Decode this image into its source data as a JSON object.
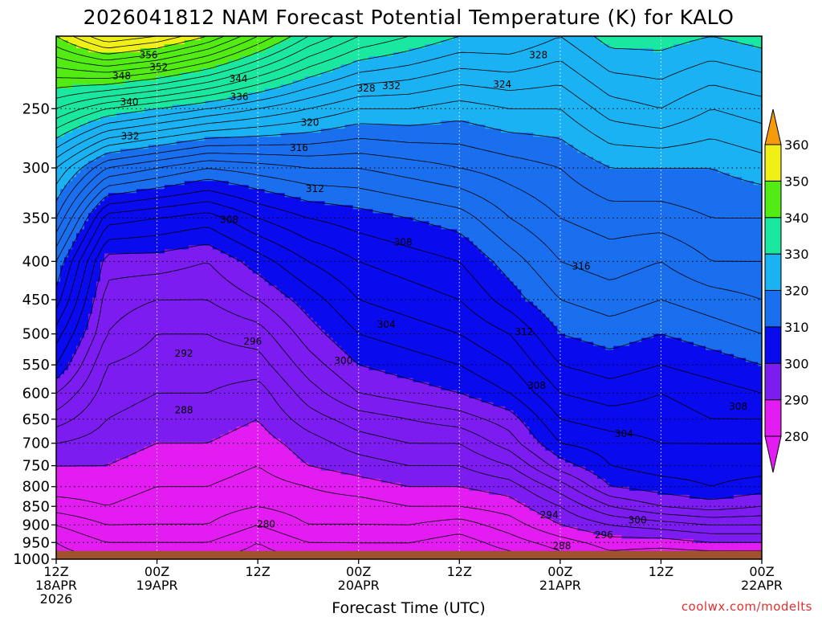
{
  "chart_data": {
    "type": "heatmap",
    "title": "2026041812 NAM Forecast Potential Temperature (K) for KALO",
    "xlabel": "Forecast Time (UTC)",
    "ylabel": "",
    "y_scale": "log",
    "y_reversed": true,
    "ylim": [
      1000,
      200
    ],
    "y_ticks": [
      "250",
      "300",
      "350",
      "400",
      "450",
      "500",
      "550",
      "600",
      "650",
      "700",
      "750",
      "800",
      "850",
      "900",
      "950",
      "1000"
    ],
    "xlim": [
      0,
      84
    ],
    "x_ticks": [
      {
        "hour": 0,
        "line1": "12Z",
        "line2": "18APR",
        "line3": "2026"
      },
      {
        "hour": 12,
        "line1": "00Z",
        "line2": "19APR",
        "line3": ""
      },
      {
        "hour": 24,
        "line1": "12Z",
        "line2": "",
        "line3": ""
      },
      {
        "hour": 36,
        "line1": "00Z",
        "line2": "20APR",
        "line3": ""
      },
      {
        "hour": 48,
        "line1": "12Z",
        "line2": "",
        "line3": ""
      },
      {
        "hour": 60,
        "line1": "00Z",
        "line2": "21APR",
        "line3": ""
      },
      {
        "hour": 72,
        "line1": "12Z",
        "line2": "",
        "line3": ""
      },
      {
        "hour": 84,
        "line1": "00Z",
        "line2": "22APR",
        "line3": ""
      }
    ],
    "grid": true,
    "surface_pressure": 975,
    "ground_color": "#a0522d",
    "colorbar": {
      "levels": [
        "280",
        "290",
        "300",
        "310",
        "320",
        "330",
        "340",
        "350",
        "360"
      ],
      "colors": [
        "#e31cf2",
        "#7c1cf0",
        "#0a0aef",
        "#1a6fee",
        "#1ab2f2",
        "#1ae8a0",
        "#52ec14",
        "#f0f018",
        "#f59b0b"
      ],
      "extend": "both"
    },
    "time_hours": [
      0,
      6,
      12,
      18,
      24,
      30,
      36,
      42,
      48,
      54,
      60,
      66,
      72,
      78,
      84
    ],
    "pressure_levels": [
      1000,
      950,
      900,
      850,
      800,
      750,
      700,
      650,
      600,
      550,
      500,
      450,
      400,
      350,
      300,
      250,
      200
    ],
    "theta_profiles": [
      [
        281,
        282,
        284,
        287,
        289,
        290,
        292,
        295,
        298,
        302,
        305,
        309,
        312,
        318,
        324,
        336,
        350
      ],
      [
        282,
        284,
        286,
        288,
        289,
        290,
        291,
        292,
        293,
        294,
        296,
        297,
        299,
        305,
        316,
        332,
        356
      ],
      [
        282,
        284,
        286,
        287,
        288,
        289,
        290,
        291,
        292,
        293,
        294,
        296,
        299,
        304,
        314,
        330,
        354
      ],
      [
        282,
        284,
        286,
        287,
        288,
        289,
        290,
        291,
        292,
        293,
        294,
        296,
        298,
        303,
        312,
        328,
        350
      ],
      [
        281,
        282,
        284,
        286,
        287,
        288,
        289,
        290,
        291,
        293,
        295,
        298,
        301,
        306,
        313,
        326,
        344
      ],
      [
        282,
        284,
        286,
        287,
        288,
        290,
        291,
        293,
        295,
        297,
        299,
        301,
        304,
        308,
        314,
        324,
        338
      ],
      [
        283,
        284,
        286,
        287,
        289,
        291,
        293,
        295,
        298,
        300,
        302,
        304,
        306,
        309,
        314,
        322,
        334
      ],
      [
        283,
        284,
        286,
        288,
        290,
        292,
        294,
        296,
        299,
        301,
        303,
        305,
        307,
        310,
        315,
        322,
        332
      ],
      [
        282,
        283,
        285,
        288,
        290,
        292,
        294,
        297,
        300,
        302,
        304,
        306,
        308,
        311,
        316,
        321,
        330
      ],
      [
        283,
        285,
        287,
        289,
        291,
        294,
        297,
        299,
        302,
        304,
        306,
        309,
        311,
        314,
        317,
        322,
        330
      ],
      [
        285,
        287,
        290,
        292,
        295,
        299,
        302,
        304,
        306,
        308,
        310,
        312,
        314,
        316,
        318,
        322,
        328
      ],
      [
        287,
        289,
        292,
        296,
        300,
        302,
        303,
        305,
        307,
        309,
        311,
        313,
        315,
        317,
        320,
        325,
        331
      ],
      [
        286,
        289,
        293,
        298,
        301,
        303,
        304,
        305,
        306,
        308,
        310,
        312,
        314,
        317,
        320,
        326,
        331
      ],
      [
        286,
        290,
        294,
        299,
        302,
        303,
        304,
        306,
        307,
        309,
        311,
        313,
        316,
        318,
        320,
        324,
        330
      ],
      [
        286,
        290,
        294,
        298,
        301,
        303,
        304,
        306,
        308,
        310,
        312,
        314,
        316,
        318,
        321,
        325,
        331
      ]
    ],
    "contour_labels": [
      {
        "text": "356",
        "hour": 11,
        "p": 212
      },
      {
        "text": "352",
        "hour": 12.2,
        "p": 220
      },
      {
        "text": "348",
        "hour": 7.8,
        "p": 226
      },
      {
        "text": "344",
        "hour": 21.7,
        "p": 228
      },
      {
        "text": "340",
        "hour": 8.7,
        "p": 245
      },
      {
        "text": "336",
        "hour": 21.8,
        "p": 241
      },
      {
        "text": "332",
        "hour": 8.8,
        "p": 272
      },
      {
        "text": "332",
        "hour": 39.9,
        "p": 233
      },
      {
        "text": "328",
        "hour": 36.9,
        "p": 235
      },
      {
        "text": "328",
        "hour": 57.4,
        "p": 212
      },
      {
        "text": "324",
        "hour": 53.1,
        "p": 232
      },
      {
        "text": "320",
        "hour": 30.2,
        "p": 261
      },
      {
        "text": "316",
        "hour": 28.9,
        "p": 282
      },
      {
        "text": "316",
        "hour": 62.5,
        "p": 406
      },
      {
        "text": "312",
        "hour": 30.8,
        "p": 320
      },
      {
        "text": "312",
        "hour": 55.7,
        "p": 497
      },
      {
        "text": "308",
        "hour": 20.6,
        "p": 352
      },
      {
        "text": "308",
        "hour": 41.3,
        "p": 377
      },
      {
        "text": "308",
        "hour": 57.2,
        "p": 586
      },
      {
        "text": "308",
        "hour": 81.2,
        "p": 625
      },
      {
        "text": "304",
        "hour": 39.3,
        "p": 486
      },
      {
        "text": "304",
        "hour": 67.6,
        "p": 680
      },
      {
        "text": "300",
        "hour": 34.2,
        "p": 543
      },
      {
        "text": "300",
        "hour": 69.2,
        "p": 887
      },
      {
        "text": "296",
        "hour": 23.4,
        "p": 512
      },
      {
        "text": "296",
        "hour": 65.2,
        "p": 928
      },
      {
        "text": "294",
        "hour": 58.7,
        "p": 873
      },
      {
        "text": "292",
        "hour": 15.2,
        "p": 531
      },
      {
        "text": "288",
        "hour": 15.2,
        "p": 632
      },
      {
        "text": "288",
        "hour": 60.2,
        "p": 960
      },
      {
        "text": "280",
        "hour": 25,
        "p": 898
      }
    ]
  },
  "credit": "coolwx.com/modelts"
}
